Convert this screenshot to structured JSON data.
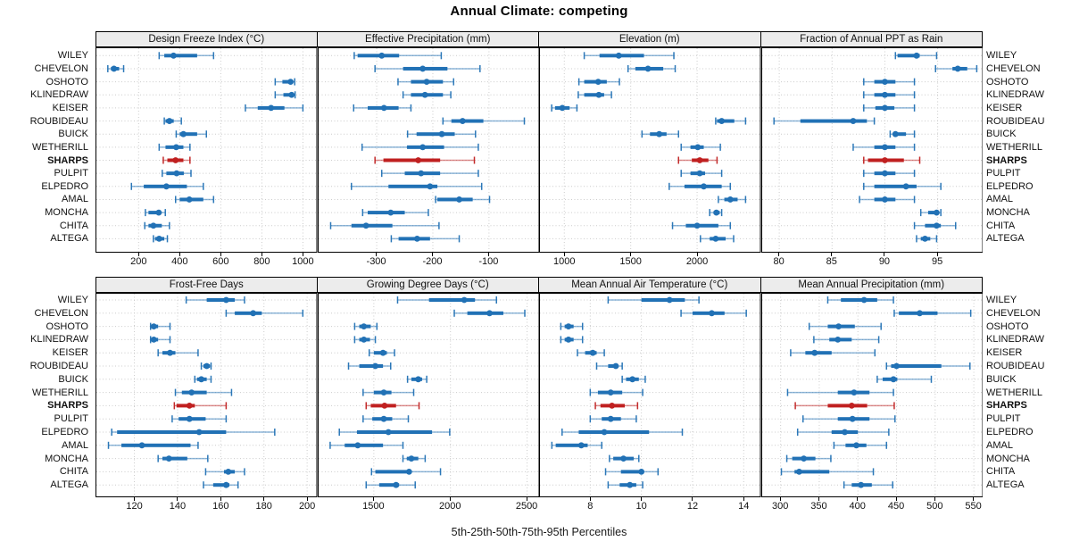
{
  "title": "Annual Climate: competing",
  "caption": "5th-25th-50th-75th-95th Percentiles",
  "percentile_labels": [
    "5th",
    "25th",
    "50th",
    "75th",
    "95th"
  ],
  "highlight_site": "SHARPS",
  "colors": {
    "series": "#2171B5",
    "highlight": "#C02020",
    "strip_bg": "#ECECEC",
    "grid": "#CCCCCC",
    "panel_border": "#000000",
    "background": "#FFFFFF"
  },
  "sites": [
    "WILEY",
    "CHEVELON",
    "OSHOTO",
    "KLINEDRAW",
    "KEISER",
    "ROUBIDEAU",
    "BUICK",
    "WETHERILL",
    "SHARPS",
    "PULPIT",
    "ELPEDRO",
    "AMAL",
    "MONCHA",
    "CHITA",
    "ALTEGA"
  ],
  "chart_data": [
    {
      "type": "percentile-dotplot",
      "title": "Design Freeze Index (°C)",
      "xlim": [
        -10,
        1070
      ],
      "ticks": [
        200,
        400,
        600,
        800,
        1000
      ],
      "values": [
        [
          300,
          325,
          370,
          485,
          565
        ],
        [
          50,
          65,
          80,
          105,
          127
        ],
        [
          865,
          900,
          940,
          950,
          960
        ],
        [
          865,
          905,
          945,
          952,
          962
        ],
        [
          720,
          780,
          845,
          910,
          1000
        ],
        [
          325,
          331,
          350,
          371,
          408
        ],
        [
          383,
          400,
          418,
          485,
          530
        ],
        [
          300,
          331,
          383,
          418,
          450
        ],
        [
          320,
          340,
          380,
          418,
          450
        ],
        [
          315,
          335,
          385,
          420,
          455
        ],
        [
          165,
          225,
          335,
          435,
          515
        ],
        [
          380,
          400,
          447,
          515,
          565
        ],
        [
          233,
          248,
          298,
          306,
          330
        ],
        [
          230,
          248,
          272,
          313,
          350
        ],
        [
          272,
          280,
          300,
          325,
          340
        ]
      ]
    },
    {
      "type": "percentile-dotplot",
      "title": "Effective Precipitation (mm)",
      "xlim": [
        -405,
        -10
      ],
      "ticks": [
        -300,
        -200,
        -100
      ],
      "values": [
        [
          -340,
          -334,
          -291,
          -260,
          -185
        ],
        [
          -303,
          -253,
          -218,
          -174,
          -116
        ],
        [
          -262,
          -239,
          -211,
          -182,
          -163
        ],
        [
          -253,
          -239,
          -214,
          -182,
          -168
        ],
        [
          -341,
          -316,
          -287,
          -261,
          -239
        ],
        [
          -182,
          -167,
          -147,
          -110,
          -37
        ],
        [
          -245,
          -229,
          -184,
          -161,
          -124
        ],
        [
          -326,
          -246,
          -218,
          -180,
          -119
        ],
        [
          -303,
          -288,
          -226,
          -187,
          -126
        ],
        [
          -291,
          -250,
          -221,
          -187,
          -119
        ],
        [
          -345,
          -279,
          -205,
          -192,
          -113
        ],
        [
          -195,
          -192,
          -153,
          -129,
          -99
        ],
        [
          -325,
          -316,
          -275,
          -250,
          -208
        ],
        [
          -382,
          -345,
          -319,
          -272,
          -189
        ],
        [
          -274,
          -261,
          -228,
          -205,
          -153
        ]
      ]
    },
    {
      "type": "percentile-dotplot",
      "title": "Elevation (m)",
      "xlim": [
        810,
        2480
      ],
      "ticks": [
        1000,
        1500,
        2000
      ],
      "values": [
        [
          1150,
          1265,
          1410,
          1600,
          1825
        ],
        [
          1480,
          1535,
          1630,
          1745,
          1835
        ],
        [
          1110,
          1150,
          1255,
          1320,
          1415
        ],
        [
          1105,
          1150,
          1260,
          1300,
          1355
        ],
        [
          905,
          930,
          985,
          1040,
          1095
        ],
        [
          2140,
          2150,
          2185,
          2280,
          2365
        ],
        [
          1585,
          1645,
          1715,
          1770,
          1860
        ],
        [
          1880,
          1950,
          2005,
          2050,
          2175
        ],
        [
          1860,
          1960,
          2020,
          2085,
          2150
        ],
        [
          1880,
          1950,
          2020,
          2060,
          2185
        ],
        [
          1790,
          1905,
          2050,
          2185,
          2250
        ],
        [
          2160,
          2205,
          2250,
          2305,
          2365
        ],
        [
          2095,
          2125,
          2145,
          2170,
          2185
        ],
        [
          1815,
          1915,
          2000,
          2160,
          2250
        ],
        [
          2025,
          2095,
          2140,
          2215,
          2275
        ]
      ]
    },
    {
      "type": "percentile-dotplot",
      "title": "Fraction of Annual PPT as Rain",
      "xlim": [
        78.3,
        99.3
      ],
      "ticks": [
        80,
        85,
        90,
        95
      ],
      "values": [
        [
          91,
          91.2,
          93,
          93.3,
          94.9
        ],
        [
          94.8,
          96.4,
          96.9,
          97.8,
          98.7
        ],
        [
          88,
          89,
          90,
          91,
          92.8
        ],
        [
          88,
          89,
          90,
          91,
          92.8
        ],
        [
          88,
          89.1,
          90,
          90.9,
          92.8
        ],
        [
          79.5,
          82,
          87,
          88.3,
          89
        ],
        [
          90.5,
          90.8,
          91,
          92,
          92.8
        ],
        [
          87,
          89,
          90,
          91,
          92.8
        ],
        [
          88,
          88.4,
          90,
          91.8,
          93.3
        ],
        [
          88,
          89,
          90,
          91,
          92.8
        ],
        [
          88,
          89,
          92,
          93,
          95.3
        ],
        [
          87.6,
          89,
          90,
          91,
          92.8
        ],
        [
          93.4,
          94.1,
          94.9,
          95.1,
          95.3
        ],
        [
          92.8,
          93.8,
          94.9,
          95.3,
          96.7
        ],
        [
          93,
          93.4,
          93.8,
          94.3,
          94.9
        ]
      ]
    },
    {
      "type": "percentile-dotplot",
      "title": "Frost-Free Days",
      "xlim": [
        102,
        204.7
      ],
      "ticks": [
        120,
        140,
        160,
        180,
        200
      ],
      "values": [
        [
          144,
          153.5,
          162.5,
          166.5,
          171
        ],
        [
          162.5,
          166.5,
          175,
          179,
          198
        ],
        [
          127.5,
          128,
          129,
          131,
          136.5
        ],
        [
          127.5,
          128,
          129,
          131,
          136.5
        ],
        [
          131,
          133,
          136.5,
          139,
          149.5
        ],
        [
          151,
          152,
          153.5,
          155,
          155.5
        ],
        [
          148,
          149,
          151,
          153.5,
          155.5
        ],
        [
          139,
          142,
          146.5,
          153.5,
          165
        ],
        [
          138.5,
          139.5,
          145.5,
          148,
          162.5
        ],
        [
          137.5,
          140.5,
          145.5,
          153,
          162.5
        ],
        [
          109.5,
          112,
          150,
          162.5,
          185
        ],
        [
          108,
          114,
          123.5,
          146,
          149.5
        ],
        [
          131,
          133,
          136,
          144.5,
          154
        ],
        [
          153,
          161.5,
          163.5,
          166.5,
          171
        ],
        [
          152,
          156.5,
          162.5,
          164,
          168
        ]
      ]
    },
    {
      "type": "percentile-dotplot",
      "title": "Growing Degree Days (°C)",
      "xlim": [
        1134,
        2581
      ],
      "ticks": [
        1500,
        2000,
        2500
      ],
      "values": [
        [
          1655,
          1860,
          2090,
          2160,
          2300
        ],
        [
          2025,
          2110,
          2255,
          2345,
          2485
        ],
        [
          1375,
          1405,
          1435,
          1480,
          1520
        ],
        [
          1375,
          1405,
          1435,
          1475,
          1510
        ],
        [
          1470,
          1500,
          1560,
          1585,
          1635
        ],
        [
          1335,
          1405,
          1510,
          1560,
          1610
        ],
        [
          1720,
          1745,
          1790,
          1815,
          1845
        ],
        [
          1430,
          1500,
          1565,
          1615,
          1760
        ],
        [
          1450,
          1480,
          1570,
          1645,
          1795
        ],
        [
          1430,
          1490,
          1565,
          1620,
          1725
        ],
        [
          1275,
          1390,
          1595,
          1880,
          1995
        ],
        [
          1215,
          1310,
          1395,
          1560,
          1690
        ],
        [
          1690,
          1715,
          1745,
          1790,
          1835
        ],
        [
          1485,
          1510,
          1730,
          1745,
          1935
        ],
        [
          1450,
          1535,
          1645,
          1665,
          1770
        ]
      ]
    },
    {
      "type": "percentile-dotplot",
      "title": "Mean Annual Air Temperature (°C)",
      "xlim": [
        6,
        14.67
      ],
      "ticks": [
        8,
        10,
        12,
        14
      ],
      "values": [
        [
          8.7,
          10,
          11.1,
          11.7,
          12.25
        ],
        [
          11.55,
          12,
          12.75,
          13.25,
          14.1
        ],
        [
          6.85,
          7,
          7.15,
          7.35,
          7.7
        ],
        [
          6.85,
          7,
          7.15,
          7.35,
          7.7
        ],
        [
          7.5,
          7.8,
          8.1,
          8.25,
          8.55
        ],
        [
          8.25,
          8.7,
          9,
          9.1,
          9.25
        ],
        [
          9.25,
          9.4,
          9.65,
          9.9,
          10.15
        ],
        [
          8,
          8.3,
          8.8,
          9.25,
          10.05
        ],
        [
          8.2,
          8.4,
          8.85,
          9.35,
          9.85
        ],
        [
          8,
          8.45,
          8.8,
          9.2,
          9.8
        ],
        [
          6.9,
          7.55,
          8.55,
          10.3,
          11.6
        ],
        [
          6.5,
          6.65,
          7.65,
          7.9,
          8.45
        ],
        [
          8.75,
          8.9,
          9.3,
          9.7,
          9.9
        ],
        [
          8.6,
          9.2,
          10,
          10.1,
          10.65
        ],
        [
          8.7,
          9.15,
          9.55,
          9.8,
          10.05
        ]
      ]
    },
    {
      "type": "percentile-dotplot",
      "title": "Mean Annual Precipitation (mm)",
      "xlim": [
        275,
        562
      ],
      "ticks": [
        300,
        350,
        400,
        450,
        500,
        550
      ],
      "values": [
        [
          361,
          378,
          408,
          425,
          446
        ],
        [
          447,
          453,
          480,
          503,
          546
        ],
        [
          337,
          361,
          375,
          396,
          430
        ],
        [
          343,
          363,
          374,
          392,
          427
        ],
        [
          313,
          332,
          344,
          366,
          422
        ],
        [
          437,
          443,
          450,
          508,
          545
        ],
        [
          425,
          432,
          446,
          451,
          495
        ],
        [
          309,
          374,
          395,
          415,
          446
        ],
        [
          319,
          361,
          392,
          412,
          447
        ],
        [
          329,
          374,
          393,
          415,
          448
        ],
        [
          322,
          366,
          383,
          400,
          440
        ],
        [
          369,
          384,
          398,
          411,
          437
        ],
        [
          308,
          315,
          330,
          345,
          365
        ],
        [
          301,
          318,
          324,
          363,
          420
        ],
        [
          382,
          392,
          404,
          418,
          445
        ]
      ]
    }
  ]
}
